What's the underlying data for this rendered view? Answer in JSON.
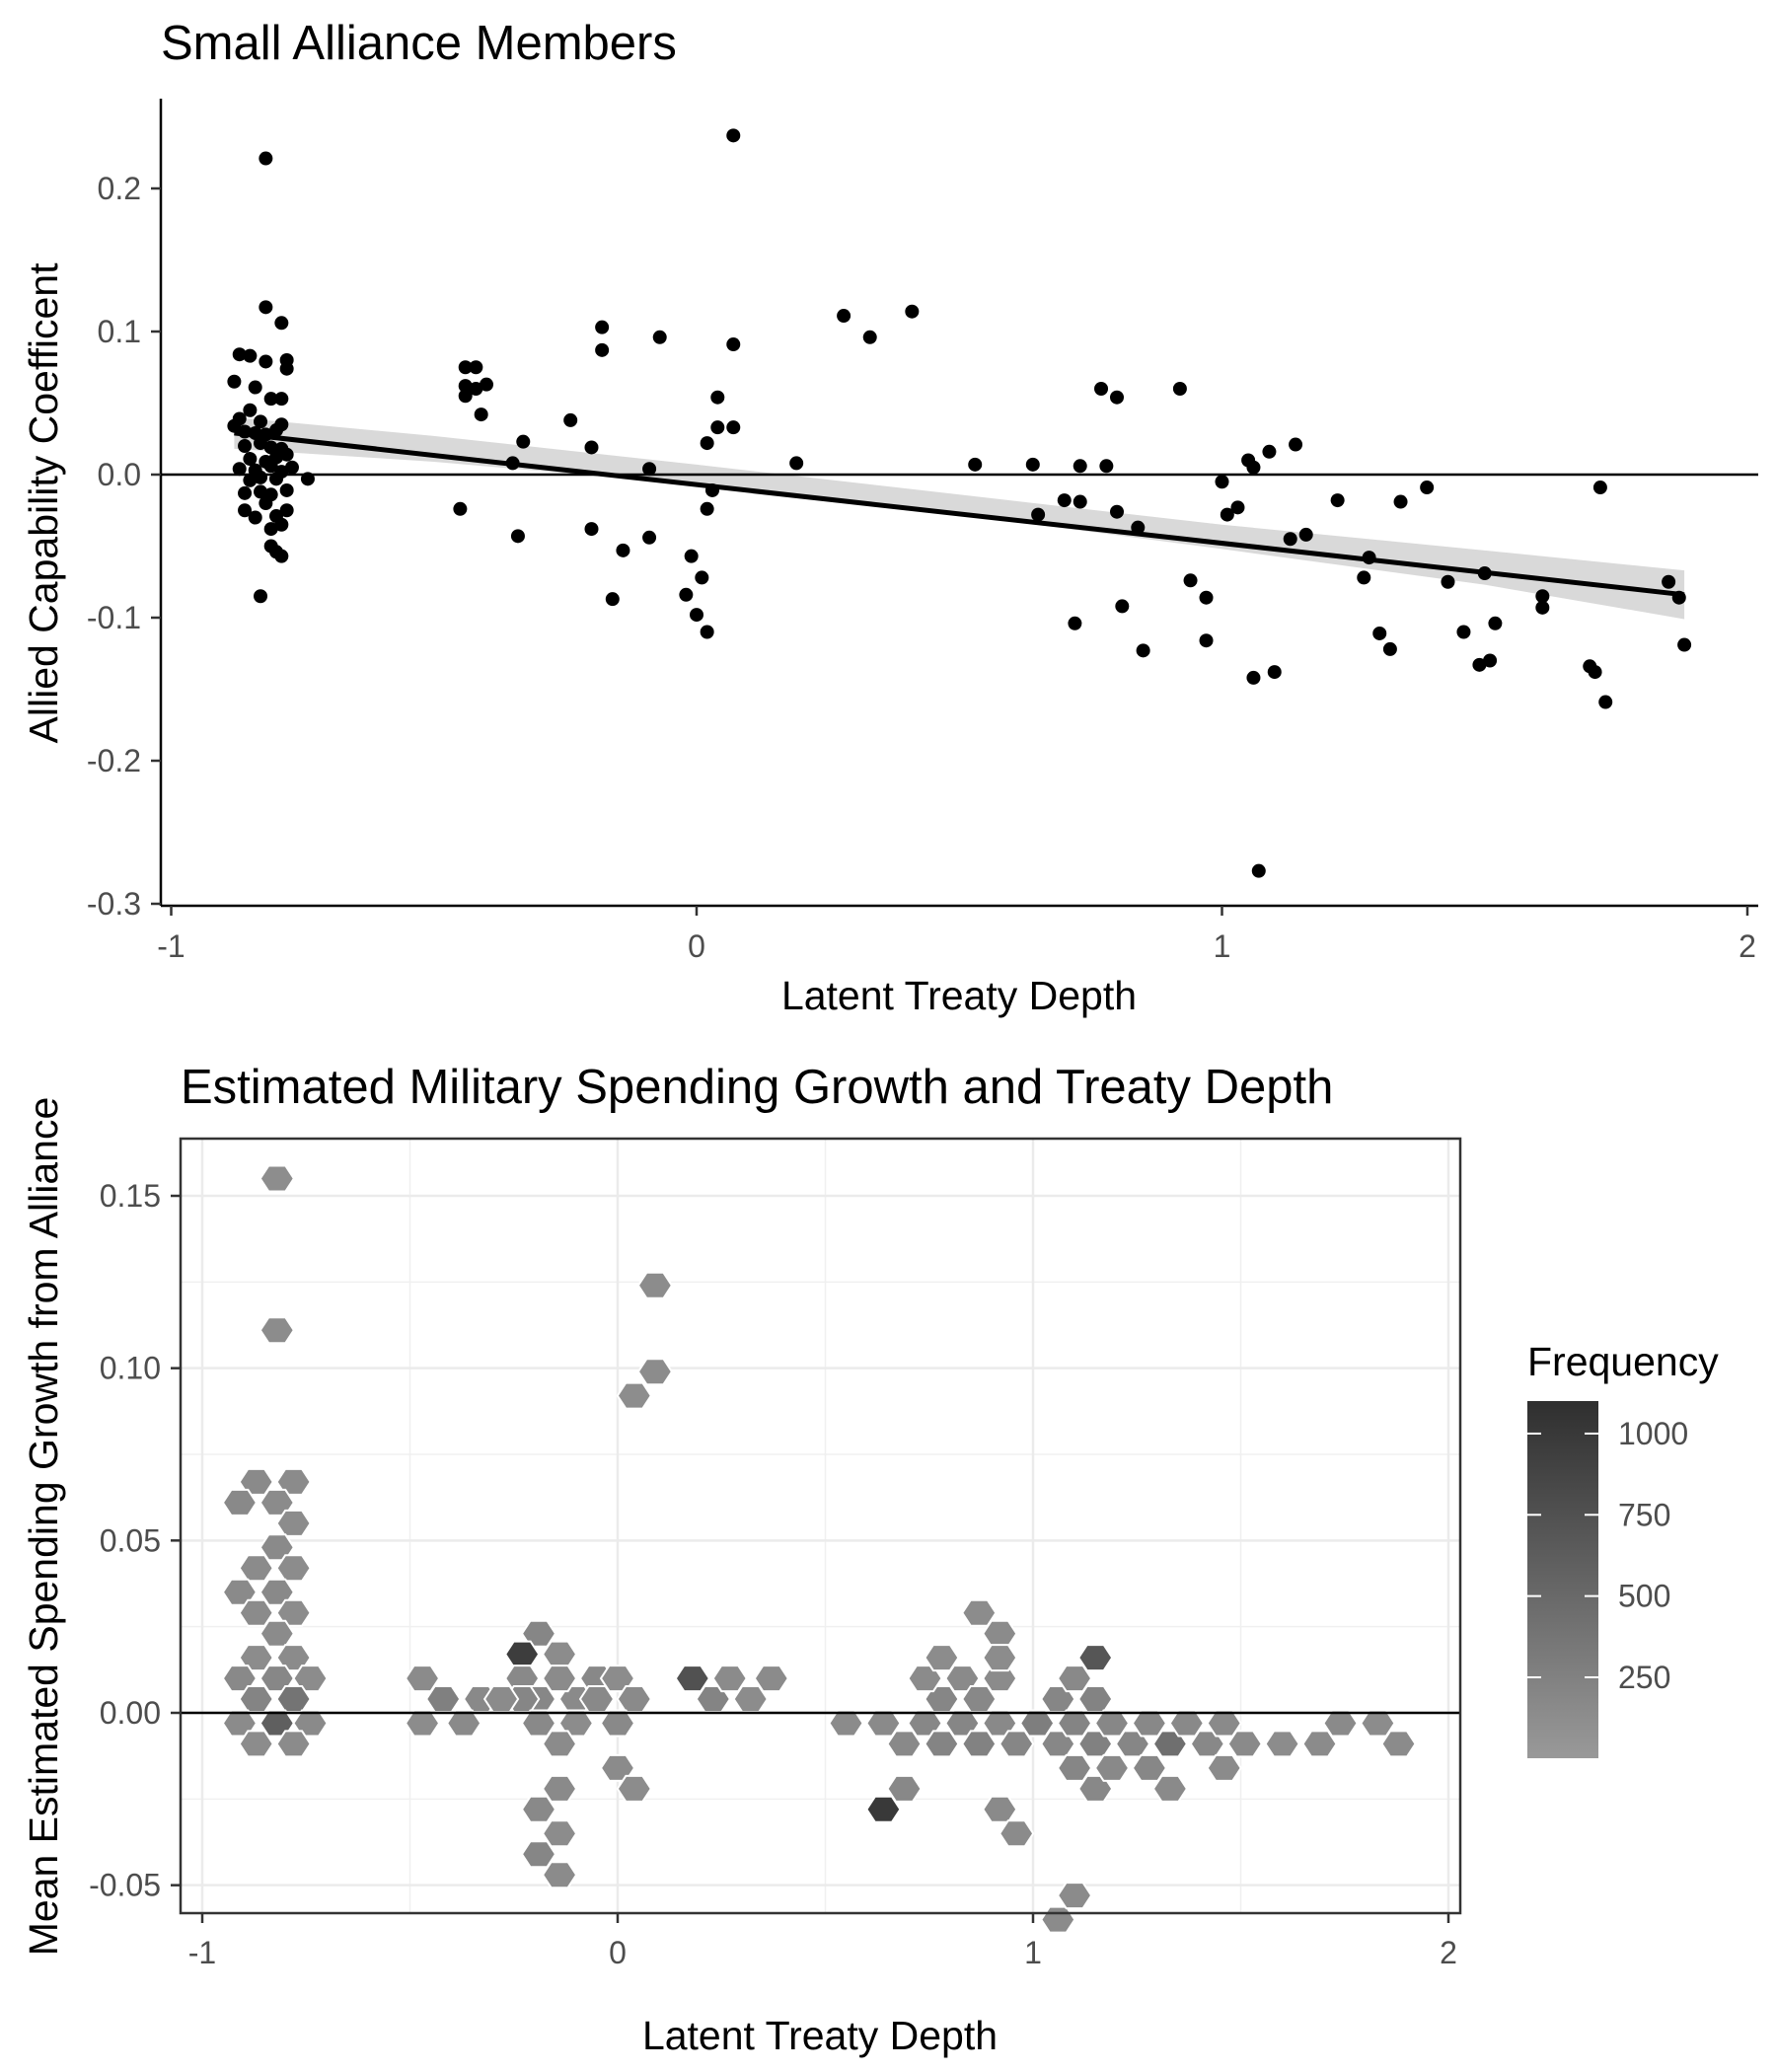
{
  "chart_data": [
    {
      "type": "scatter",
      "title": "Small Alliance Members",
      "xlabel": "Latent Treaty Depth",
      "ylabel": "Allied Capability Coefficent",
      "xlim": [
        -1,
        2
      ],
      "ylim": [
        -0.3,
        0.25
      ],
      "xticks": [
        -1,
        0,
        1,
        2
      ],
      "xtick_labels": [
        "-1",
        "0",
        "1",
        "2"
      ],
      "yticks": [
        -0.3,
        -0.2,
        -0.1,
        0.0,
        0.1,
        0.2
      ],
      "ytick_labels": [
        "-0.3",
        "-0.2",
        "-0.1",
        "0.0",
        "0.1",
        "0.2"
      ],
      "grid": false,
      "reference_line_y": 0,
      "point_color": "#000000",
      "fit_line": {
        "x": [
          -0.88,
          1.88
        ],
        "y": [
          0.029,
          -0.084
        ],
        "color": "#000000"
      },
      "confidence_band": {
        "x": [
          -0.88,
          -0.5,
          0.0,
          0.5,
          1.0,
          1.5,
          1.88
        ],
        "lower": [
          0.018,
          0.009,
          -0.007,
          -0.028,
          -0.052,
          -0.077,
          -0.101
        ],
        "upper": [
          0.04,
          0.027,
          0.007,
          -0.014,
          -0.035,
          -0.053,
          -0.067
        ],
        "color": "#d9d9d9"
      },
      "points": [
        [
          -0.82,
          0.221
        ],
        [
          0.07,
          0.237
        ],
        [
          -0.82,
          0.117
        ],
        [
          -0.79,
          0.106
        ],
        [
          -0.87,
          0.084
        ],
        [
          -0.85,
          0.083
        ],
        [
          -0.82,
          0.079
        ],
        [
          -0.78,
          0.08
        ],
        [
          -0.78,
          0.074
        ],
        [
          -0.88,
          0.065
        ],
        [
          -0.84,
          0.061
        ],
        [
          -0.81,
          0.053
        ],
        [
          -0.79,
          0.053
        ],
        [
          -0.85,
          0.045
        ],
        [
          -0.87,
          0.039
        ],
        [
          -0.83,
          0.037
        ],
        [
          -0.79,
          0.035
        ],
        [
          -0.88,
          0.034
        ],
        [
          -0.86,
          0.03
        ],
        [
          -0.84,
          0.029
        ],
        [
          -0.82,
          0.028
        ],
        [
          -0.8,
          0.031
        ],
        [
          -0.86,
          0.02
        ],
        [
          -0.83,
          0.022
        ],
        [
          -0.81,
          0.019
        ],
        [
          -0.79,
          0.018
        ],
        [
          -0.78,
          0.014
        ],
        [
          -0.85,
          0.011
        ],
        [
          -0.82,
          0.009
        ],
        [
          -0.8,
          0.012
        ],
        [
          -0.87,
          0.004
        ],
        [
          -0.84,
          0.003
        ],
        [
          -0.81,
          0.006
        ],
        [
          -0.79,
          0.002
        ],
        [
          -0.77,
          0.005
        ],
        [
          -0.85,
          -0.004
        ],
        [
          -0.83,
          -0.002
        ],
        [
          -0.8,
          -0.003
        ],
        [
          -0.86,
          -0.013
        ],
        [
          -0.83,
          -0.012
        ],
        [
          -0.81,
          -0.014
        ],
        [
          -0.78,
          -0.011
        ],
        [
          -0.74,
          -0.003
        ],
        [
          -0.86,
          -0.025
        ],
        [
          -0.84,
          -0.03
        ],
        [
          -0.82,
          -0.02
        ],
        [
          -0.8,
          -0.029
        ],
        [
          -0.78,
          -0.025
        ],
        [
          -0.81,
          -0.038
        ],
        [
          -0.79,
          -0.035
        ],
        [
          -0.81,
          -0.05
        ],
        [
          -0.8,
          -0.054
        ],
        [
          -0.79,
          -0.057
        ],
        [
          -0.83,
          -0.085
        ],
        [
          -0.44,
          0.075
        ],
        [
          -0.42,
          0.075
        ],
        [
          -0.44,
          0.062
        ],
        [
          -0.42,
          0.06
        ],
        [
          -0.4,
          0.063
        ],
        [
          -0.44,
          0.055
        ],
        [
          -0.41,
          0.042
        ],
        [
          -0.45,
          -0.024
        ],
        [
          -0.33,
          0.023
        ],
        [
          -0.35,
          0.008
        ],
        [
          -0.34,
          -0.043
        ],
        [
          -0.24,
          0.038
        ],
        [
          -0.2,
          0.019
        ],
        [
          -0.18,
          0.103
        ],
        [
          -0.18,
          0.087
        ],
        [
          -0.2,
          -0.038
        ],
        [
          -0.16,
          -0.087
        ],
        [
          -0.14,
          -0.053
        ],
        [
          -0.09,
          0.004
        ],
        [
          -0.07,
          0.096
        ],
        [
          -0.09,
          -0.044
        ],
        [
          -0.01,
          -0.057
        ],
        [
          -0.02,
          -0.084
        ],
        [
          0.01,
          -0.072
        ],
        [
          0.0,
          -0.098
        ],
        [
          0.02,
          -0.11
        ],
        [
          0.02,
          0.022
        ],
        [
          0.02,
          -0.024
        ],
        [
          0.04,
          0.054
        ],
        [
          0.04,
          0.033
        ],
        [
          0.07,
          0.033
        ],
        [
          0.07,
          0.091
        ],
        [
          0.03,
          -0.011
        ],
        [
          0.19,
          0.008
        ],
        [
          0.28,
          0.111
        ],
        [
          0.33,
          0.096
        ],
        [
          0.41,
          0.114
        ],
        [
          0.53,
          0.007
        ],
        [
          0.64,
          0.007
        ],
        [
          0.65,
          -0.028
        ],
        [
          0.7,
          -0.018
        ],
        [
          0.73,
          -0.019
        ],
        [
          0.72,
          -0.104
        ],
        [
          0.73,
          0.006
        ],
        [
          0.77,
          0.06
        ],
        [
          0.78,
          0.006
        ],
        [
          0.8,
          0.054
        ],
        [
          0.81,
          -0.092
        ],
        [
          0.84,
          -0.037
        ],
        [
          0.85,
          -0.123
        ],
        [
          0.8,
          -0.026
        ],
        [
          0.92,
          0.06
        ],
        [
          0.94,
          -0.074
        ],
        [
          0.97,
          -0.086
        ],
        [
          0.97,
          -0.116
        ],
        [
          1.0,
          -0.005
        ],
        [
          1.01,
          -0.028
        ],
        [
          1.03,
          -0.023
        ],
        [
          1.05,
          0.01
        ],
        [
          1.06,
          0.005
        ],
        [
          1.06,
          -0.142
        ],
        [
          1.07,
          -0.277
        ],
        [
          1.09,
          0.016
        ],
        [
          1.1,
          -0.138
        ],
        [
          1.13,
          -0.045
        ],
        [
          1.14,
          0.021
        ],
        [
          1.16,
          -0.042
        ],
        [
          1.22,
          -0.018
        ],
        [
          1.27,
          -0.072
        ],
        [
          1.28,
          -0.058
        ],
        [
          1.3,
          -0.111
        ],
        [
          1.32,
          -0.122
        ],
        [
          1.34,
          -0.019
        ],
        [
          1.39,
          -0.009
        ],
        [
          1.43,
          -0.075
        ],
        [
          1.46,
          -0.11
        ],
        [
          1.49,
          -0.133
        ],
        [
          1.5,
          -0.069
        ],
        [
          1.51,
          -0.13
        ],
        [
          1.52,
          -0.104
        ],
        [
          1.61,
          -0.093
        ],
        [
          1.61,
          -0.085
        ],
        [
          1.7,
          -0.134
        ],
        [
          1.71,
          -0.138
        ],
        [
          1.72,
          -0.009
        ],
        [
          1.73,
          -0.159
        ],
        [
          1.85,
          -0.075
        ],
        [
          1.87,
          -0.086
        ],
        [
          1.88,
          -0.119
        ]
      ]
    },
    {
      "type": "heatmap",
      "subtype": "hexbin",
      "title": "Estimated Military Spending Growth and Treaty Depth",
      "xlabel": "Latent Treaty Depth",
      "ylabel": "Mean Estimated Spending Growth from Alliance",
      "xlim": [
        -1,
        2
      ],
      "ylim": [
        -0.05,
        0.15
      ],
      "xticks": [
        -1,
        0,
        1,
        2
      ],
      "xtick_labels": [
        "-1",
        "0",
        "1",
        "2"
      ],
      "yticks": [
        -0.05,
        0.0,
        0.05,
        0.1,
        0.15
      ],
      "ytick_labels": [
        "-0.05",
        "0.00",
        "0.05",
        "0.10",
        "0.15"
      ],
      "grid": true,
      "reference_line_y": 0,
      "legend": {
        "title": "Frequency",
        "position": "right",
        "breaks": [
          250,
          500,
          750,
          1000
        ],
        "break_labels": [
          "250",
          "500",
          "750",
          "1000"
        ],
        "range": [
          1,
          1100
        ],
        "color_low": "#999999",
        "color_high": "#2f2f2f"
      },
      "bins": [
        [
          -0.82,
          0.155,
          130
        ],
        [
          -0.82,
          0.111,
          140
        ],
        [
          -0.87,
          0.067,
          160
        ],
        [
          -0.78,
          0.067,
          150
        ],
        [
          -0.91,
          0.061,
          170
        ],
        [
          -0.82,
          0.061,
          150
        ],
        [
          -0.78,
          0.055,
          140
        ],
        [
          -0.82,
          0.048,
          160
        ],
        [
          -0.87,
          0.042,
          150
        ],
        [
          -0.78,
          0.042,
          140
        ],
        [
          -0.91,
          0.035,
          160
        ],
        [
          -0.82,
          0.035,
          170
        ],
        [
          -0.87,
          0.029,
          150
        ],
        [
          -0.78,
          0.029,
          140
        ],
        [
          -0.82,
          0.023,
          150
        ],
        [
          -0.87,
          0.016,
          140
        ],
        [
          -0.78,
          0.016,
          150
        ],
        [
          -0.91,
          0.01,
          170
        ],
        [
          -0.82,
          0.01,
          190
        ],
        [
          -0.74,
          0.01,
          140
        ],
        [
          -0.87,
          0.004,
          220
        ],
        [
          -0.78,
          0.004,
          380
        ],
        [
          -0.91,
          -0.003,
          150
        ],
        [
          -0.82,
          -0.003,
          600
        ],
        [
          -0.74,
          -0.003,
          160
        ],
        [
          -0.87,
          -0.009,
          140
        ],
        [
          -0.78,
          -0.009,
          150
        ],
        [
          -0.47,
          0.01,
          150
        ],
        [
          -0.42,
          0.004,
          260
        ],
        [
          -0.33,
          0.004,
          170
        ],
        [
          -0.47,
          -0.003,
          140
        ],
        [
          -0.37,
          -0.003,
          160
        ],
        [
          -0.19,
          0.023,
          200
        ],
        [
          -0.23,
          0.017,
          950
        ],
        [
          -0.14,
          0.017,
          140
        ],
        [
          -0.23,
          0.01,
          170
        ],
        [
          -0.19,
          0.004,
          190
        ],
        [
          -0.1,
          0.004,
          160
        ],
        [
          -0.14,
          0.01,
          150
        ],
        [
          -0.05,
          0.01,
          180
        ],
        [
          -0.23,
          0.004,
          200
        ],
        [
          -0.28,
          0.004,
          150
        ],
        [
          -0.19,
          -0.003,
          170
        ],
        [
          -0.1,
          -0.003,
          140
        ],
        [
          -0.14,
          -0.009,
          150
        ],
        [
          -0.05,
          0.004,
          170
        ],
        [
          0.0,
          0.01,
          140
        ],
        [
          0.04,
          0.004,
          160
        ],
        [
          0.0,
          -0.003,
          170
        ],
        [
          0.0,
          -0.016,
          150
        ],
        [
          0.04,
          -0.022,
          140
        ],
        [
          -0.14,
          -0.022,
          160
        ],
        [
          -0.19,
          -0.028,
          170
        ],
        [
          -0.14,
          -0.035,
          140
        ],
        [
          -0.19,
          -0.041,
          200
        ],
        [
          -0.14,
          -0.047,
          150
        ],
        [
          0.04,
          0.092,
          130
        ],
        [
          0.09,
          0.099,
          140
        ],
        [
          0.09,
          0.124,
          140
        ],
        [
          0.18,
          0.01,
          750
        ],
        [
          0.23,
          0.004,
          220
        ],
        [
          0.27,
          0.01,
          150
        ],
        [
          0.32,
          0.004,
          140
        ],
        [
          0.37,
          0.01,
          150
        ],
        [
          0.55,
          -0.003,
          150
        ],
        [
          0.64,
          -0.003,
          160
        ],
        [
          0.69,
          -0.009,
          170
        ],
        [
          0.64,
          -0.028,
          1000
        ],
        [
          0.69,
          -0.022,
          180
        ],
        [
          0.74,
          -0.003,
          190
        ],
        [
          0.78,
          0.004,
          200
        ],
        [
          0.74,
          0.01,
          150
        ],
        [
          0.78,
          0.016,
          140
        ],
        [
          0.83,
          0.01,
          160
        ],
        [
          0.78,
          -0.009,
          220
        ],
        [
          0.83,
          -0.003,
          200
        ],
        [
          0.87,
          -0.009,
          240
        ],
        [
          0.87,
          0.004,
          180
        ],
        [
          0.92,
          0.01,
          150
        ],
        [
          0.92,
          -0.003,
          170
        ],
        [
          0.87,
          0.029,
          140
        ],
        [
          0.92,
          0.023,
          150
        ],
        [
          0.92,
          0.016,
          140
        ],
        [
          0.96,
          -0.009,
          200
        ],
        [
          1.01,
          -0.003,
          280
        ],
        [
          1.06,
          -0.009,
          190
        ],
        [
          0.92,
          -0.028,
          160
        ],
        [
          0.96,
          -0.035,
          150
        ],
        [
          1.06,
          0.004,
          200
        ],
        [
          1.1,
          0.01,
          170
        ],
        [
          1.1,
          -0.003,
          220
        ],
        [
          1.15,
          0.016,
          700
        ],
        [
          1.15,
          0.004,
          230
        ],
        [
          1.1,
          -0.016,
          200
        ],
        [
          1.15,
          -0.022,
          180
        ],
        [
          1.15,
          -0.009,
          250
        ],
        [
          1.19,
          -0.003,
          190
        ],
        [
          1.24,
          -0.009,
          200
        ],
        [
          1.19,
          -0.016,
          170
        ],
        [
          1.28,
          -0.003,
          180
        ],
        [
          1.28,
          -0.016,
          190
        ],
        [
          1.33,
          -0.009,
          440
        ],
        [
          1.37,
          -0.003,
          170
        ],
        [
          1.33,
          -0.022,
          160
        ],
        [
          1.42,
          -0.009,
          180
        ],
        [
          1.46,
          -0.003,
          160
        ],
        [
          1.46,
          -0.016,
          150
        ],
        [
          1.51,
          -0.009,
          160
        ],
        [
          1.6,
          -0.009,
          140
        ],
        [
          1.69,
          -0.009,
          150
        ],
        [
          1.74,
          -0.003,
          160
        ],
        [
          1.83,
          -0.003,
          140
        ],
        [
          1.88,
          -0.009,
          150
        ],
        [
          1.06,
          -0.06,
          150
        ],
        [
          1.1,
          -0.053,
          150
        ]
      ]
    }
  ]
}
